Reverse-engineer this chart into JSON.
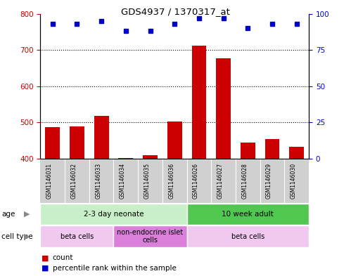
{
  "title": "GDS4937 / 1370317_at",
  "samples": [
    "GSM1146031",
    "GSM1146032",
    "GSM1146033",
    "GSM1146034",
    "GSM1146035",
    "GSM1146036",
    "GSM1146026",
    "GSM1146027",
    "GSM1146028",
    "GSM1146029",
    "GSM1146030"
  ],
  "counts": [
    487,
    490,
    518,
    402,
    410,
    503,
    713,
    678,
    445,
    455,
    432
  ],
  "percentiles": [
    93,
    93,
    95,
    88,
    88,
    93,
    97,
    97,
    90,
    93,
    93
  ],
  "ylim_left": [
    400,
    800
  ],
  "ylim_right": [
    0,
    100
  ],
  "yticks_left": [
    400,
    500,
    600,
    700,
    800
  ],
  "yticks_right": [
    0,
    25,
    50,
    75,
    100
  ],
  "bar_color": "#cc0000",
  "dot_color": "#0000cc",
  "age_groups": [
    {
      "label": "2-3 day neonate",
      "start": 0,
      "end": 6,
      "color": "#c8f0c8"
    },
    {
      "label": "10 week adult",
      "start": 6,
      "end": 11,
      "color": "#50c850"
    }
  ],
  "cell_type_groups": [
    {
      "label": "beta cells",
      "start": 0,
      "end": 3,
      "color": "#f0c8f0"
    },
    {
      "label": "non-endocrine islet\ncells",
      "start": 3,
      "end": 6,
      "color": "#da80da"
    },
    {
      "label": "beta cells",
      "start": 6,
      "end": 11,
      "color": "#f0c8f0"
    }
  ],
  "legend_items": [
    {
      "color": "#cc0000",
      "label": "count"
    },
    {
      "color": "#0000cc",
      "label": "percentile rank within the sample"
    }
  ],
  "background_color": "#ffffff",
  "tick_area_bg": "#d0d0d0"
}
